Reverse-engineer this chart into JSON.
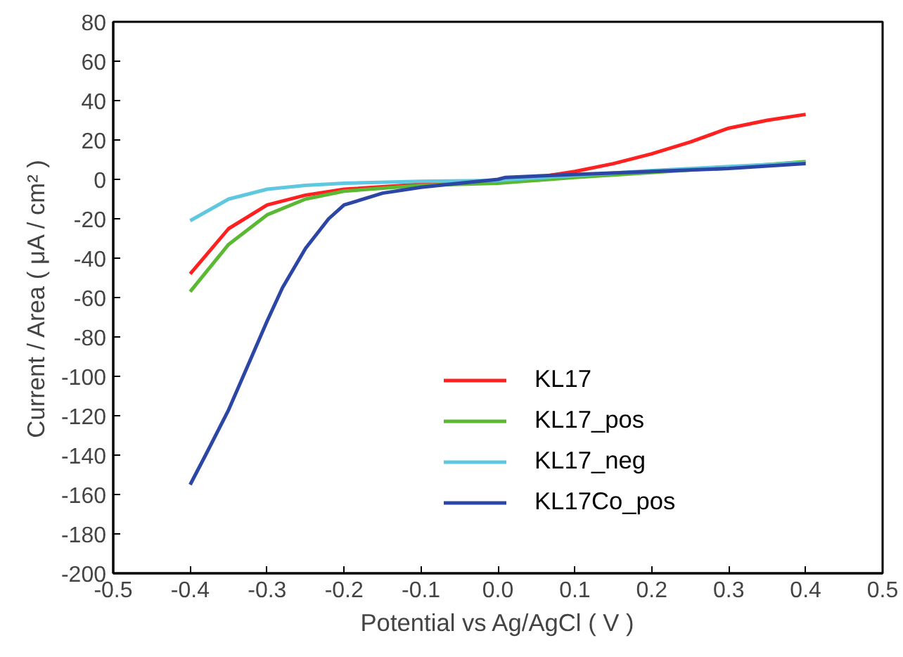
{
  "chart_data": {
    "type": "line",
    "xlabel": "Potential vs Ag/AgCl ( V )",
    "ylabel": "Current / Area ( μA / cm² )",
    "xlim": [
      -0.5,
      0.5
    ],
    "xticks": [
      -0.5,
      -0.4,
      -0.3,
      -0.2,
      -0.1,
      {
        "value": 0,
        "label": "0.0"
      },
      0.1,
      0.2,
      0.3,
      0.4,
      0.5
    ],
    "ylim": [
      -200,
      80
    ],
    "yticks": [
      -200,
      -180,
      -160,
      -140,
      -120,
      -100,
      -80,
      -60,
      -40,
      -20,
      0,
      20,
      40,
      60,
      80
    ],
    "grid": false,
    "legend": "right",
    "marker": "none",
    "line_style": "solid",
    "series": [
      {
        "name": "KL17",
        "color": "#ff2020",
        "x": [
          -0.4,
          -0.35,
          -0.3,
          -0.25,
          -0.2,
          -0.1,
          0.0,
          0.05,
          0.1,
          0.15,
          0.2,
          0.25,
          0.3,
          0.35,
          0.4
        ],
        "values": [
          -48,
          -25,
          -13,
          -8,
          -5,
          -2.5,
          -1,
          1,
          4,
          8,
          13,
          19,
          26,
          30,
          33
        ]
      },
      {
        "name": "KL17_pos",
        "color": "#5ab832",
        "x": [
          -0.4,
          -0.35,
          -0.3,
          -0.25,
          -0.2,
          -0.1,
          0.0,
          0.1,
          0.2,
          0.3,
          0.4
        ],
        "values": [
          -57,
          -33,
          -18,
          -10,
          -6,
          -3,
          -2,
          1,
          3.5,
          6,
          9
        ]
      },
      {
        "name": "KL17_neg",
        "color": "#5fc8e0",
        "x": [
          -0.4,
          -0.35,
          -0.3,
          -0.25,
          -0.2,
          -0.1,
          0.0,
          0.1,
          0.2,
          0.3,
          0.4
        ],
        "values": [
          -21,
          -10,
          -5,
          -3,
          -2,
          -1,
          -0.5,
          2,
          4.5,
          6.5,
          8.5
        ]
      },
      {
        "name": "KL17Co_pos",
        "color": "#2c46a6",
        "x": [
          -0.4,
          -0.38,
          -0.35,
          -0.32,
          -0.3,
          -0.28,
          -0.25,
          -0.22,
          -0.2,
          -0.15,
          -0.1,
          -0.05,
          0.0,
          0.01,
          0.1,
          0.2,
          0.3,
          0.4
        ],
        "values": [
          -155,
          -140,
          -117,
          -90,
          -72,
          -55,
          -35,
          -20,
          -13,
          -7,
          -4,
          -2,
          0,
          1,
          2.5,
          4,
          5.5,
          8
        ]
      }
    ]
  }
}
